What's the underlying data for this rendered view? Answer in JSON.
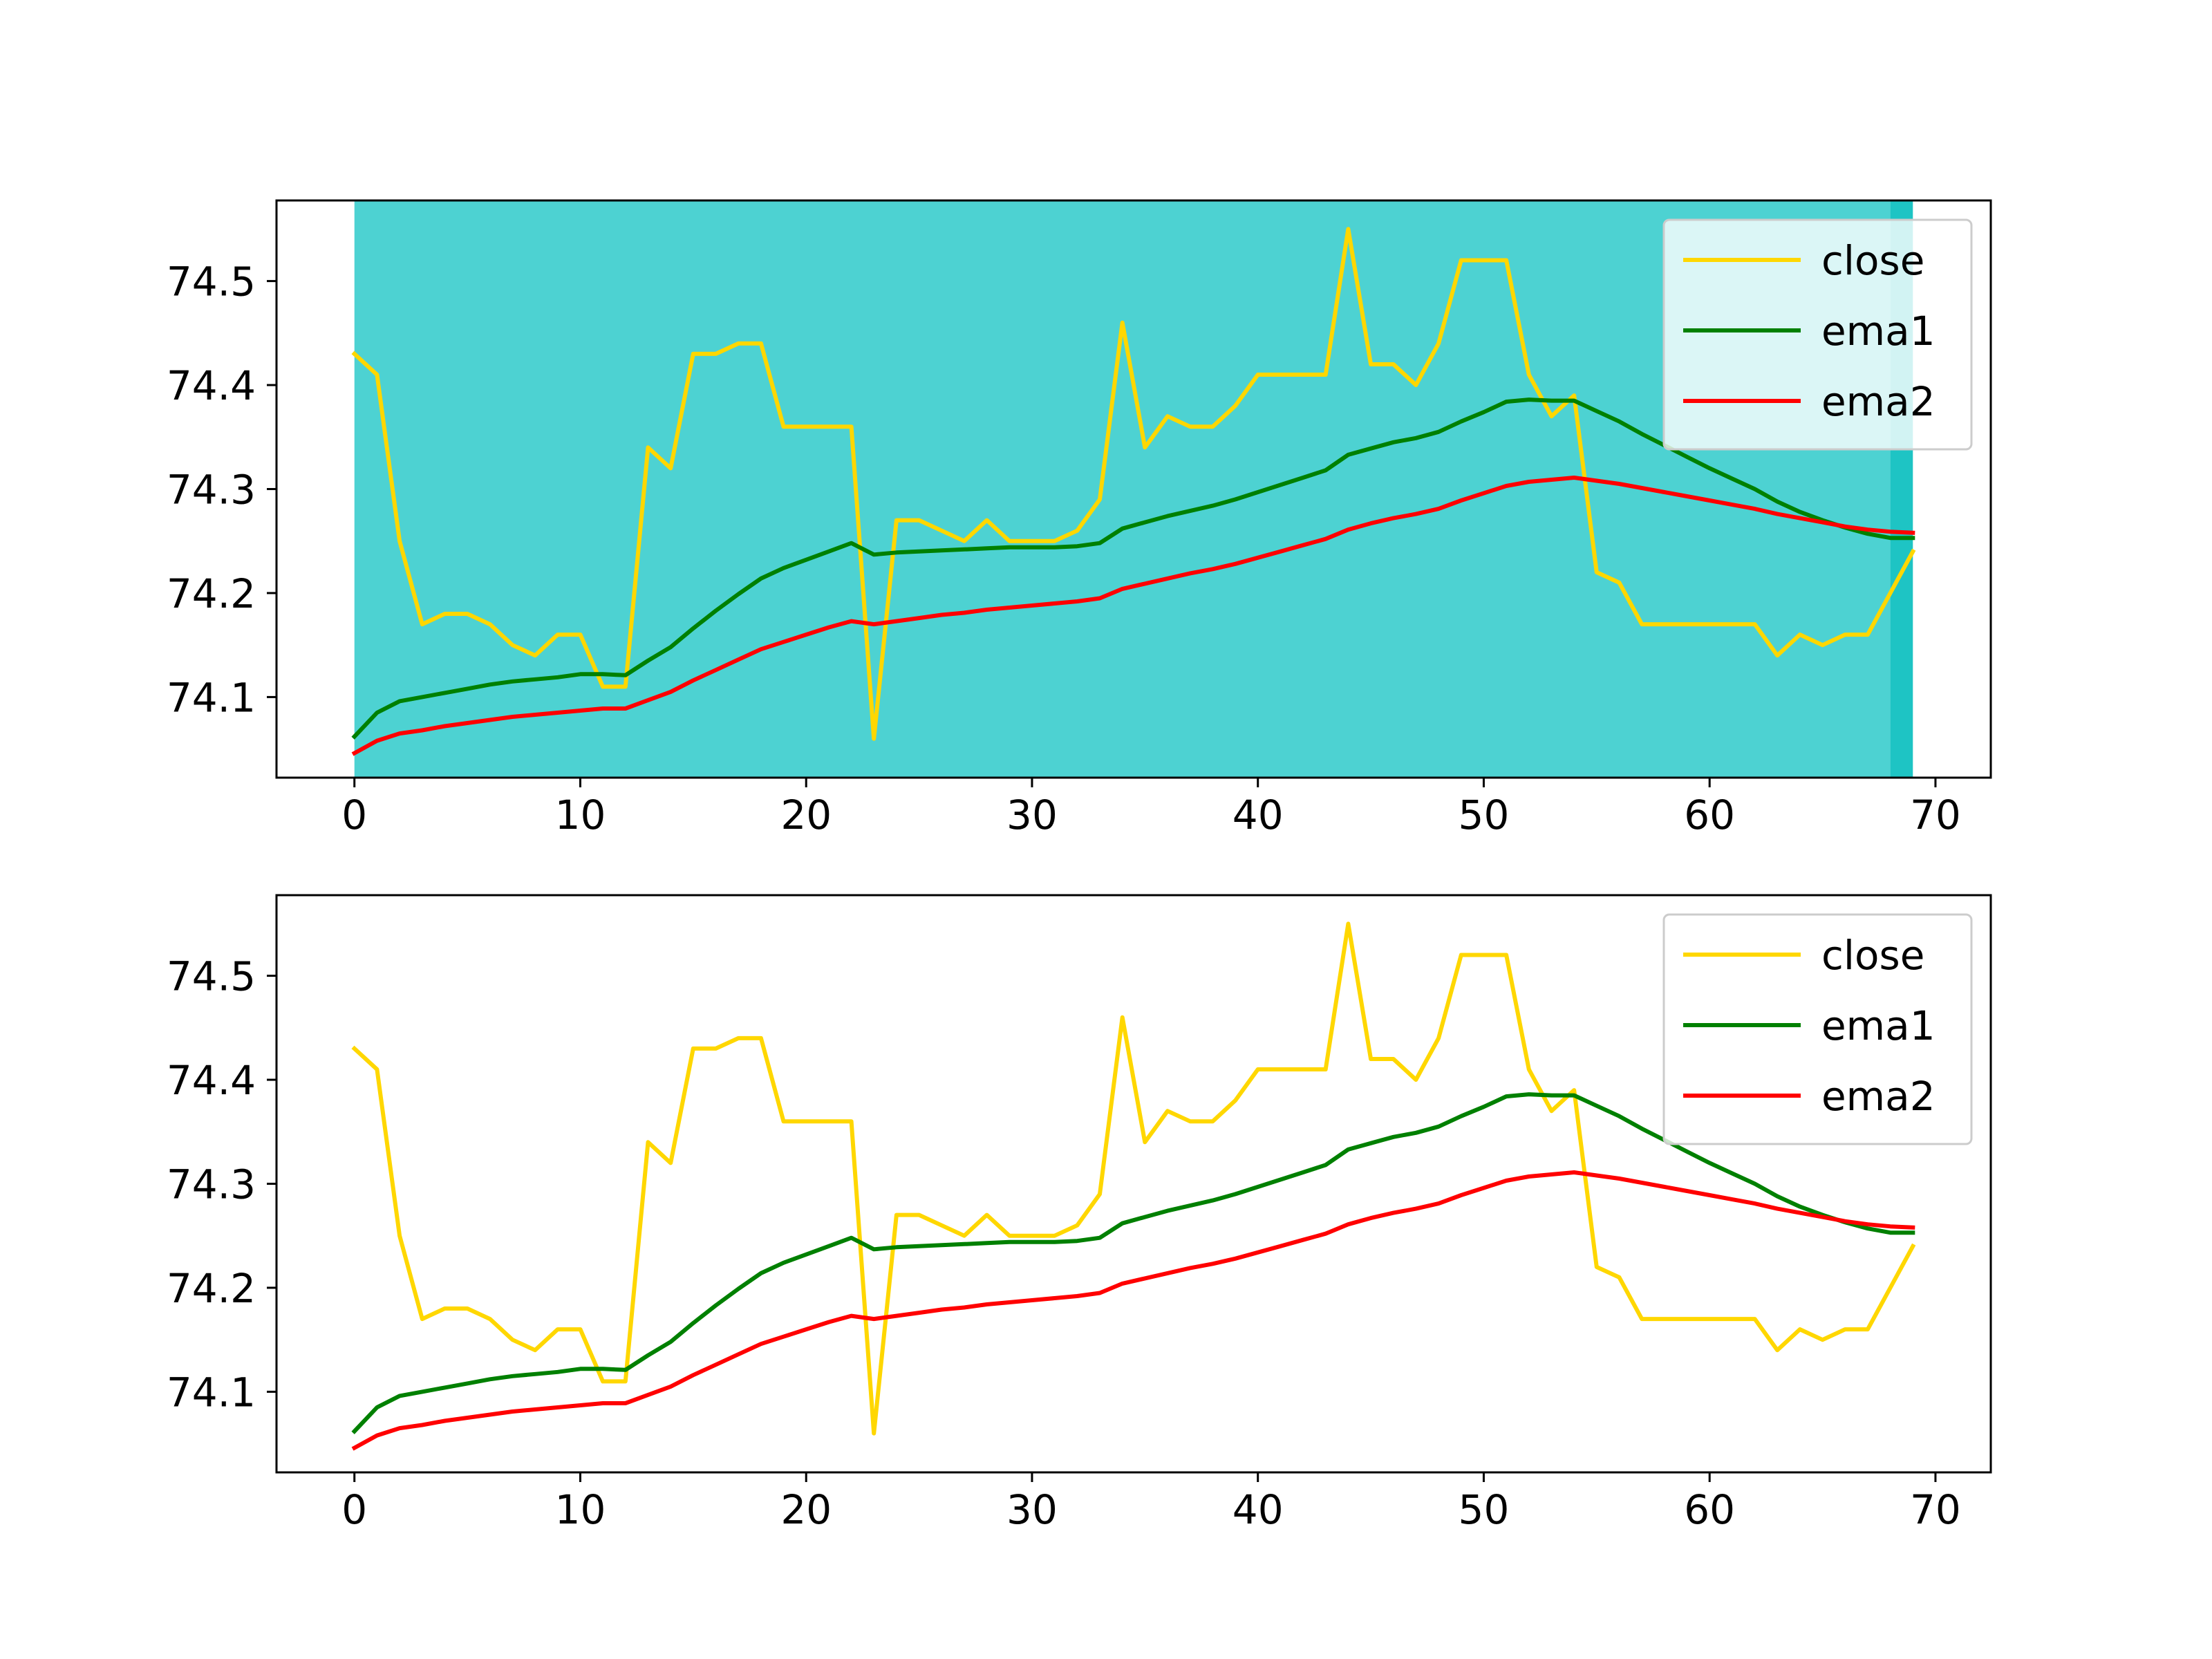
{
  "colors": {
    "close": "#ffd700",
    "ema1": "#008000",
    "ema2": "#ff0000",
    "shade_light": "#4dd2d2",
    "shade_dark": "#1ec4c4",
    "legend_border": "#cccccc"
  },
  "chart_data": [
    {
      "type": "line",
      "title": "",
      "xlabel": "",
      "ylabel": "",
      "xlim": [
        -3.45,
        72.45
      ],
      "ylim": [
        74.0225,
        74.5775
      ],
      "xticks": [
        0,
        10,
        20,
        30,
        40,
        50,
        60,
        70
      ],
      "xtick_labels": [
        "0",
        "10",
        "20",
        "30",
        "40",
        "50",
        "60",
        "70"
      ],
      "yticks": [
        74.1,
        74.2,
        74.3,
        74.4,
        74.5
      ],
      "ytick_labels": [
        "74.1",
        "74.2",
        "74.3",
        "74.4",
        "74.5"
      ],
      "grid": false,
      "legend_position": "upper right",
      "shaded_spans": [
        {
          "x0": 0,
          "x1": 68,
          "color": "#4dd2d2"
        },
        {
          "x0": 68,
          "x1": 69,
          "color": "#1ec4c4"
        }
      ],
      "x": [
        0,
        1,
        2,
        3,
        4,
        5,
        6,
        7,
        8,
        9,
        10,
        11,
        12,
        13,
        14,
        15,
        16,
        17,
        18,
        19,
        20,
        21,
        22,
        23,
        24,
        25,
        26,
        27,
        28,
        29,
        30,
        31,
        32,
        33,
        34,
        35,
        36,
        37,
        38,
        39,
        40,
        41,
        42,
        43,
        44,
        45,
        46,
        47,
        48,
        49,
        50,
        51,
        52,
        53,
        54,
        55,
        56,
        57,
        58,
        59,
        60,
        61,
        62,
        63,
        64,
        65,
        66,
        67,
        68,
        69
      ],
      "series": [
        {
          "name": "close",
          "color": "#ffd700",
          "values": [
            74.43,
            74.41,
            74.25,
            74.17,
            74.18,
            74.18,
            74.17,
            74.15,
            74.14,
            74.16,
            74.16,
            74.11,
            74.11,
            74.34,
            74.32,
            74.43,
            74.43,
            74.44,
            74.44,
            74.36,
            74.36,
            74.36,
            74.36,
            74.06,
            74.27,
            74.27,
            74.26,
            74.25,
            74.27,
            74.25,
            74.25,
            74.25,
            74.26,
            74.29,
            74.46,
            74.34,
            74.37,
            74.36,
            74.36,
            74.38,
            74.41,
            74.41,
            74.41,
            74.41,
            74.55,
            74.42,
            74.42,
            74.4,
            74.44,
            74.52,
            74.52,
            74.52,
            74.41,
            74.37,
            74.39,
            74.22,
            74.21,
            74.17,
            74.17,
            74.17,
            74.17,
            74.17,
            74.17,
            74.14,
            74.16,
            74.15,
            74.16,
            74.16,
            74.2,
            74.24
          ]
        },
        {
          "name": "ema1",
          "color": "#008000",
          "values": [
            74.062,
            74.085,
            74.096,
            74.1,
            74.104,
            74.108,
            74.112,
            74.115,
            74.117,
            74.119,
            74.122,
            74.122,
            74.121,
            74.135,
            74.148,
            74.166,
            74.183,
            74.199,
            74.214,
            74.224,
            74.232,
            74.24,
            74.248,
            74.237,
            74.239,
            74.24,
            74.241,
            74.242,
            74.243,
            74.244,
            74.244,
            74.244,
            74.245,
            74.248,
            74.262,
            74.268,
            74.274,
            74.279,
            74.284,
            74.29,
            74.297,
            74.304,
            74.311,
            74.318,
            74.333,
            74.339,
            74.345,
            74.349,
            74.355,
            74.365,
            74.374,
            74.384,
            74.386,
            74.385,
            74.385,
            74.375,
            74.365,
            74.353,
            74.342,
            74.331,
            74.32,
            74.31,
            74.3,
            74.288,
            74.278,
            74.27,
            74.263,
            74.257,
            74.253,
            74.253
          ]
        },
        {
          "name": "ema2",
          "color": "#ff0000",
          "values": [
            74.046,
            74.058,
            74.065,
            74.068,
            74.072,
            74.075,
            74.078,
            74.081,
            74.083,
            74.085,
            74.087,
            74.089,
            74.089,
            74.097,
            74.105,
            74.116,
            74.126,
            74.136,
            74.146,
            74.153,
            74.16,
            74.167,
            74.173,
            74.17,
            74.173,
            74.176,
            74.179,
            74.181,
            74.184,
            74.186,
            74.188,
            74.19,
            74.192,
            74.195,
            74.204,
            74.209,
            74.214,
            74.219,
            74.223,
            74.228,
            74.234,
            74.24,
            74.246,
            74.252,
            74.261,
            74.267,
            74.272,
            74.276,
            74.281,
            74.289,
            74.296,
            74.303,
            74.307,
            74.309,
            74.311,
            74.308,
            74.305,
            74.301,
            74.297,
            74.293,
            74.289,
            74.285,
            74.281,
            74.276,
            74.272,
            74.268,
            74.264,
            74.261,
            74.259,
            74.258
          ]
        }
      ]
    },
    {
      "type": "line",
      "title": "",
      "xlabel": "",
      "ylabel": "",
      "xlim": [
        -3.45,
        72.45
      ],
      "ylim": [
        74.0225,
        74.5775
      ],
      "xticks": [
        0,
        10,
        20,
        30,
        40,
        50,
        60,
        70
      ],
      "xtick_labels": [
        "0",
        "10",
        "20",
        "30",
        "40",
        "50",
        "60",
        "70"
      ],
      "yticks": [
        74.1,
        74.2,
        74.3,
        74.4,
        74.5
      ],
      "ytick_labels": [
        "74.1",
        "74.2",
        "74.3",
        "74.4",
        "74.5"
      ],
      "grid": false,
      "legend_position": "upper right",
      "shaded_spans": [],
      "x": [
        0,
        1,
        2,
        3,
        4,
        5,
        6,
        7,
        8,
        9,
        10,
        11,
        12,
        13,
        14,
        15,
        16,
        17,
        18,
        19,
        20,
        21,
        22,
        23,
        24,
        25,
        26,
        27,
        28,
        29,
        30,
        31,
        32,
        33,
        34,
        35,
        36,
        37,
        38,
        39,
        40,
        41,
        42,
        43,
        44,
        45,
        46,
        47,
        48,
        49,
        50,
        51,
        52,
        53,
        54,
        55,
        56,
        57,
        58,
        59,
        60,
        61,
        62,
        63,
        64,
        65,
        66,
        67,
        68,
        69
      ],
      "series": [
        {
          "name": "close",
          "color": "#ffd700",
          "values": [
            74.43,
            74.41,
            74.25,
            74.17,
            74.18,
            74.18,
            74.17,
            74.15,
            74.14,
            74.16,
            74.16,
            74.11,
            74.11,
            74.34,
            74.32,
            74.43,
            74.43,
            74.44,
            74.44,
            74.36,
            74.36,
            74.36,
            74.36,
            74.06,
            74.27,
            74.27,
            74.26,
            74.25,
            74.27,
            74.25,
            74.25,
            74.25,
            74.26,
            74.29,
            74.46,
            74.34,
            74.37,
            74.36,
            74.36,
            74.38,
            74.41,
            74.41,
            74.41,
            74.41,
            74.55,
            74.42,
            74.42,
            74.4,
            74.44,
            74.52,
            74.52,
            74.52,
            74.41,
            74.37,
            74.39,
            74.22,
            74.21,
            74.17,
            74.17,
            74.17,
            74.17,
            74.17,
            74.17,
            74.14,
            74.16,
            74.15,
            74.16,
            74.16,
            74.2,
            74.24
          ]
        },
        {
          "name": "ema1",
          "color": "#008000",
          "values": [
            74.062,
            74.085,
            74.096,
            74.1,
            74.104,
            74.108,
            74.112,
            74.115,
            74.117,
            74.119,
            74.122,
            74.122,
            74.121,
            74.135,
            74.148,
            74.166,
            74.183,
            74.199,
            74.214,
            74.224,
            74.232,
            74.24,
            74.248,
            74.237,
            74.239,
            74.24,
            74.241,
            74.242,
            74.243,
            74.244,
            74.244,
            74.244,
            74.245,
            74.248,
            74.262,
            74.268,
            74.274,
            74.279,
            74.284,
            74.29,
            74.297,
            74.304,
            74.311,
            74.318,
            74.333,
            74.339,
            74.345,
            74.349,
            74.355,
            74.365,
            74.374,
            74.384,
            74.386,
            74.385,
            74.385,
            74.375,
            74.365,
            74.353,
            74.342,
            74.331,
            74.32,
            74.31,
            74.3,
            74.288,
            74.278,
            74.27,
            74.263,
            74.257,
            74.253,
            74.253
          ]
        },
        {
          "name": "ema2",
          "color": "#ff0000",
          "values": [
            74.046,
            74.058,
            74.065,
            74.068,
            74.072,
            74.075,
            74.078,
            74.081,
            74.083,
            74.085,
            74.087,
            74.089,
            74.089,
            74.097,
            74.105,
            74.116,
            74.126,
            74.136,
            74.146,
            74.153,
            74.16,
            74.167,
            74.173,
            74.17,
            74.173,
            74.176,
            74.179,
            74.181,
            74.184,
            74.186,
            74.188,
            74.19,
            74.192,
            74.195,
            74.204,
            74.209,
            74.214,
            74.219,
            74.223,
            74.228,
            74.234,
            74.24,
            74.246,
            74.252,
            74.261,
            74.267,
            74.272,
            74.276,
            74.281,
            74.289,
            74.296,
            74.303,
            74.307,
            74.309,
            74.311,
            74.308,
            74.305,
            74.301,
            74.297,
            74.293,
            74.289,
            74.285,
            74.281,
            74.276,
            74.272,
            74.268,
            74.264,
            74.261,
            74.259,
            74.258
          ]
        }
      ]
    }
  ]
}
